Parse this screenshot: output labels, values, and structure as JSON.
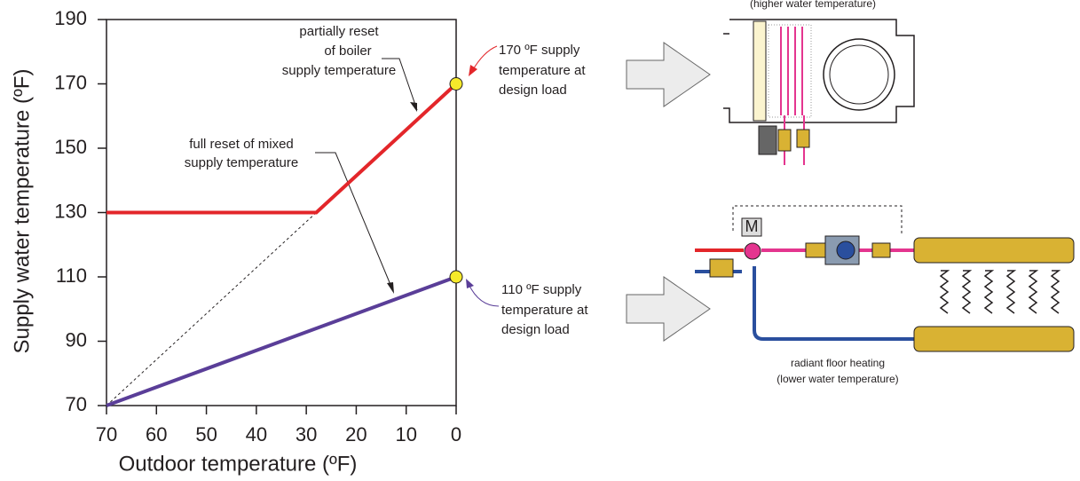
{
  "chart_data": {
    "type": "line",
    "xlabel": "Outdoor temperature (ºF)",
    "ylabel": "Supply water temperature (ºF)",
    "xlim": [
      70,
      0
    ],
    "ylim": [
      70,
      190
    ],
    "xticks": [
      70,
      60,
      50,
      40,
      30,
      20,
      10,
      0
    ],
    "yticks": [
      70,
      90,
      110,
      130,
      150,
      170,
      190
    ],
    "series": [
      {
        "color": "#e3262a",
        "x": [
          70,
          28,
          0
        ],
        "values": [
          130,
          130,
          170
        ],
        "marker_color": "#f6ea2a"
      },
      {
        "color": "#5a3e98",
        "x": [
          70,
          0
        ],
        "values": [
          70,
          110
        ],
        "marker_color": "#f6ea2a"
      },
      {
        "color": "#231f20",
        "dash": true,
        "x": [
          70,
          28
        ],
        "values": [
          70,
          130
        ]
      }
    ],
    "annotations": [
      {
        "lines": [
          "partially reset",
          "of boiler",
          "supply temperature"
        ]
      },
      {
        "lines": [
          "full reset of mixed",
          "supply temperature"
        ]
      },
      {
        "lines": [
          "170 ºF supply",
          "temperature at",
          "design load"
        ],
        "color": "#e3262a"
      },
      {
        "lines": [
          "110 ºF supply",
          "temperature at",
          "design load"
        ],
        "color": "#5a3e98"
      }
    ]
  },
  "diagram": {
    "fan_coil_caption": "(higher water temperature)",
    "actuator_label": "M",
    "radiant_caption": [
      "radiant floor heating",
      "(lower water temperature)"
    ]
  }
}
